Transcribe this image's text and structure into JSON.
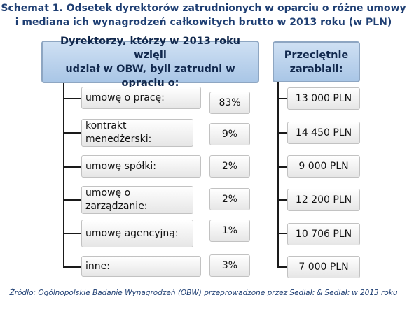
{
  "title": {
    "line1": "Schemat 1. Odsetek dyrektorów zatrudnionych w oparciu o różne umowy",
    "line2": "i mediana ich wynagrodzeń całkowitych brutto w 2013 roku (w PLN)"
  },
  "header_left": {
    "line1": "Dyrektorzy, którzy w 2013 roku wzięli",
    "line2": "udział w OBW, byli zatrudni w opraciu o:"
  },
  "header_right": {
    "line1": "Przeciętnie",
    "line2": "zarabiali:"
  },
  "rows": [
    {
      "label": "umowę o pracę:",
      "percent": "83%",
      "salary": "13 000 PLN"
    },
    {
      "label": "kontrakt menedżerski:",
      "percent": "9%",
      "salary": "14 450 PLN"
    },
    {
      "label": "umowę spółki:",
      "percent": "2%",
      "salary": "9 000 PLN"
    },
    {
      "label": "umowę o zarządzanie:",
      "percent": "2%",
      "salary": "12 200 PLN"
    },
    {
      "label": "umowę agencyjną:",
      "percent": "1%",
      "salary": "10 706 PLN"
    },
    {
      "label": "inne:",
      "percent": "3%",
      "salary": "7 000 PLN"
    }
  ],
  "source": "Źródło: Ogólnopolskie Badanie Wynagrodzeń (OBW) przeprowadzone przez Sedlak & Sedlak w 2013 roku"
}
